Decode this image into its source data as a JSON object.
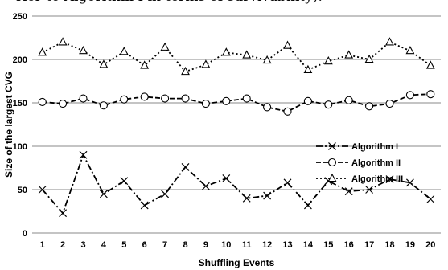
{
  "caption": "rior to Algorithm I in terms of survivability).",
  "chart_data": {
    "type": "line",
    "title": "",
    "xlabel": "Shuffling Events",
    "ylabel": "Size of the largest CVG",
    "ylim": [
      0,
      250
    ],
    "yticks": [
      0,
      50,
      100,
      150,
      200,
      250
    ],
    "grid": "horizontal",
    "legend_position": "right",
    "categories": [
      "1",
      "2",
      "3",
      "4",
      "5",
      "6",
      "7",
      "8",
      "9",
      "10",
      "11",
      "12",
      "13",
      "14",
      "15",
      "16",
      "17",
      "18",
      "19",
      "20"
    ],
    "series": [
      {
        "name": "Algorithm I",
        "marker": "x",
        "line": "dash-dot",
        "values": [
          50,
          23,
          90,
          45,
          60,
          32,
          45,
          76,
          54,
          63,
          40,
          43,
          58,
          32,
          60,
          48,
          50,
          62,
          58,
          39
        ]
      },
      {
        "name": "Algorithm II",
        "marker": "circle",
        "line": "dashed",
        "values": [
          151,
          149,
          155,
          147,
          154,
          157,
          155,
          155,
          149,
          152,
          155,
          145,
          140,
          152,
          148,
          153,
          146,
          149,
          159,
          160
        ]
      },
      {
        "name": "Algorithm III",
        "marker": "triangle",
        "line": "dotted",
        "values": [
          208,
          220,
          210,
          194,
          209,
          193,
          214,
          186,
          194,
          208,
          205,
          199,
          216,
          188,
          198,
          205,
          200,
          220,
          210,
          193
        ]
      }
    ]
  }
}
